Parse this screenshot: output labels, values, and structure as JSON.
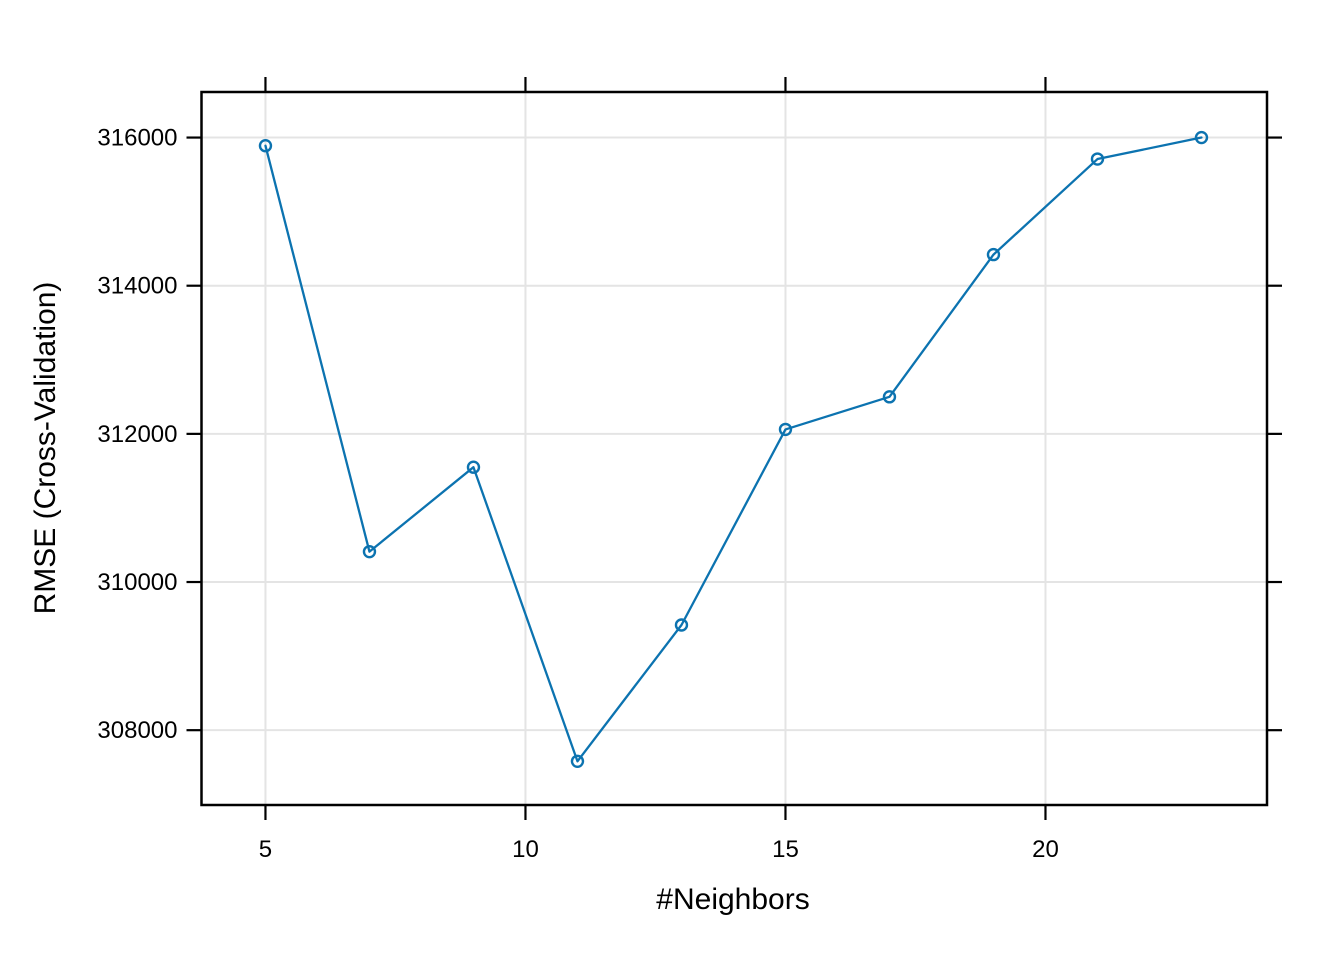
{
  "chart_data": {
    "type": "line",
    "title": "",
    "xlabel": "#Neighbors",
    "ylabel": "RMSE (Cross-Validation)",
    "series": [
      {
        "name": "RMSE",
        "x": [
          5,
          7,
          9,
          11,
          13,
          15,
          17,
          19,
          21,
          23
        ],
        "y": [
          315890,
          310410,
          311550,
          307580,
          309420,
          312060,
          312500,
          314420,
          315710,
          316000
        ]
      }
    ],
    "xticks": [
      5,
      10,
      15,
      20
    ],
    "yticks": [
      308000,
      310000,
      312000,
      314000,
      316000
    ],
    "xtick_labels": [
      "5",
      "10",
      "15",
      "20"
    ],
    "ytick_labels": [
      "308000",
      "310000",
      "312000",
      "314000",
      "316000"
    ],
    "xlim": [
      3.77,
      24.26
    ],
    "ylim": [
      306990,
      316615
    ],
    "grid": true,
    "legend": "none",
    "marker": "open-circle",
    "colors": {
      "line": "#0C73B0",
      "marker": "#0C73B0",
      "grid": "#E4E4E4",
      "axis": "#000000",
      "text": "#000000",
      "background": "#FFFFFF"
    }
  }
}
